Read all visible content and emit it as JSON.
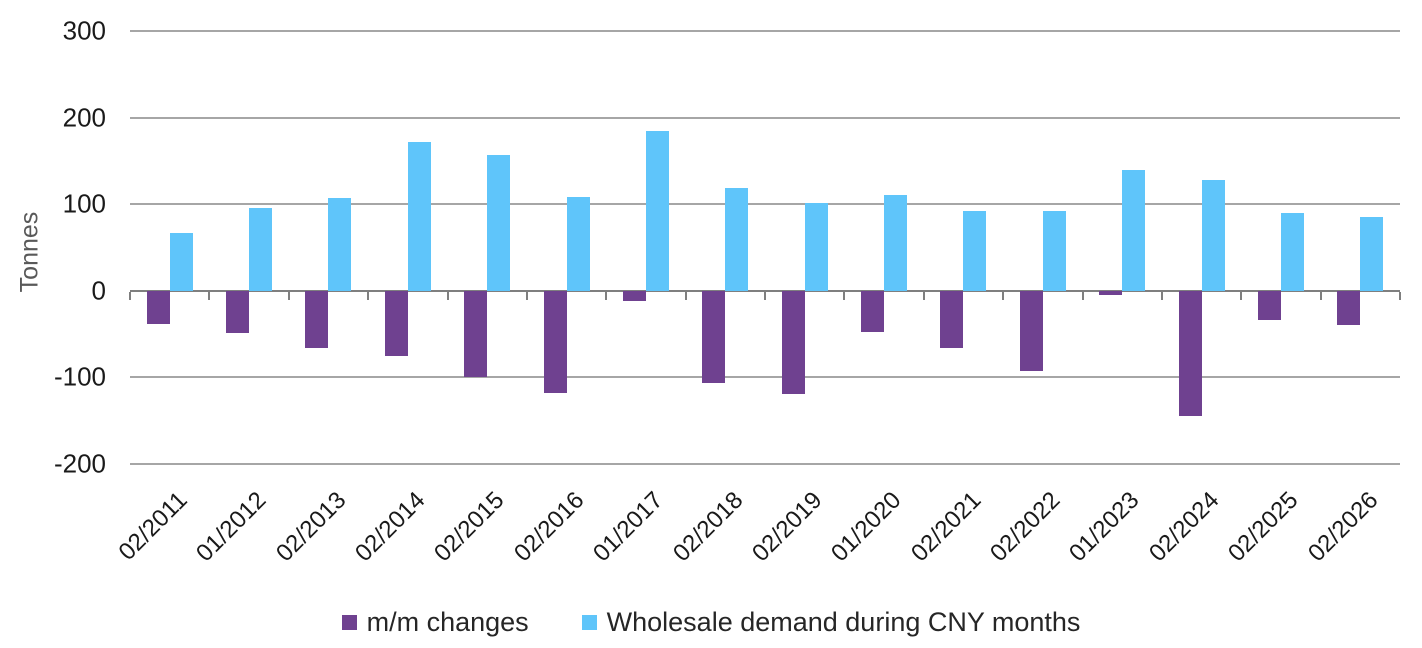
{
  "chart_data": {
    "type": "bar",
    "title": "",
    "xlabel": "",
    "ylabel": "Tonnes",
    "ylim": [
      -200,
      300
    ],
    "yticks": [
      300,
      200,
      100,
      0,
      -100,
      -200
    ],
    "grid": "horizontal",
    "legend_position": "bottom",
    "categories": [
      "02/2011",
      "01/2012",
      "02/2013",
      "02/2014",
      "02/2015",
      "02/2016",
      "01/2017",
      "02/2018",
      "02/2019",
      "01/2020",
      "02/2021",
      "02/2022",
      "01/2023",
      "02/2024",
      "02/2025",
      "02/2026"
    ],
    "series": [
      {
        "name": "m/m changes",
        "color": "#6F4190",
        "values": [
          -38,
          -49,
          -66,
          -75,
          -100,
          -118,
          -12,
          -106,
          -119,
          -48,
          -66,
          -93,
          -5,
          -145,
          -34,
          -40
        ]
      },
      {
        "name": "Wholesale demand during CNY months",
        "color": "#5FC5FA",
        "values": [
          67,
          96,
          107,
          172,
          157,
          108,
          184,
          119,
          101,
          111,
          92,
          92,
          139,
          128,
          90,
          85
        ]
      }
    ]
  },
  "style": {
    "gridline_color": "#A6A6A6",
    "axis_color": "#7F7F7F",
    "tick_label_color": "#1A1A1A",
    "axis_title_color": "#595959",
    "legend_text_color": "#262626",
    "background": "#FFFFFF"
  }
}
